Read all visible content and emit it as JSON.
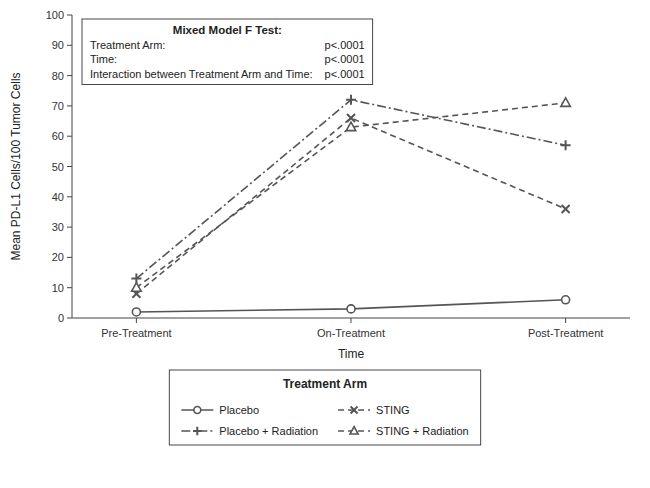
{
  "chart_data": {
    "type": "line",
    "categories": [
      "Pre-Treatment",
      "On-Treatment",
      "Post-Treatment"
    ],
    "series": [
      {
        "name": "Placebo",
        "color": "#555555",
        "marker": "circle",
        "line_style": "solid",
        "values": [
          2,
          3,
          6
        ]
      },
      {
        "name": "Placebo + Radiation",
        "color": "#555555",
        "marker": "plus",
        "line_style": "dashdot",
        "values": [
          13,
          72,
          57
        ]
      },
      {
        "name": "STING",
        "color": "#555555",
        "marker": "x",
        "line_style": "dashed",
        "values": [
          8,
          66,
          36
        ]
      },
      {
        "name": "STING + Radiation",
        "color": "#555555",
        "marker": "triangle",
        "line_style": "dashed",
        "values": [
          10,
          63,
          71
        ]
      }
    ],
    "x_label": "Time",
    "y_label": "Mean PD-L1 Cells/100 Tumor Cells",
    "ylim": [
      0,
      100
    ],
    "yticks": [
      0,
      10,
      20,
      30,
      40,
      50,
      60,
      70,
      80,
      90,
      100
    ],
    "grid": false,
    "legend": "bottom",
    "legend_title": "Treatment Arm",
    "annotation": {
      "title": "Mixed Model F Test:",
      "lines": [
        [
          "Treatment Arm:",
          "p<.0001"
        ],
        [
          "Time:",
          "p<.0001"
        ],
        [
          "Interaction between Treatment Arm and Time:",
          "p<.0001"
        ]
      ]
    }
  }
}
